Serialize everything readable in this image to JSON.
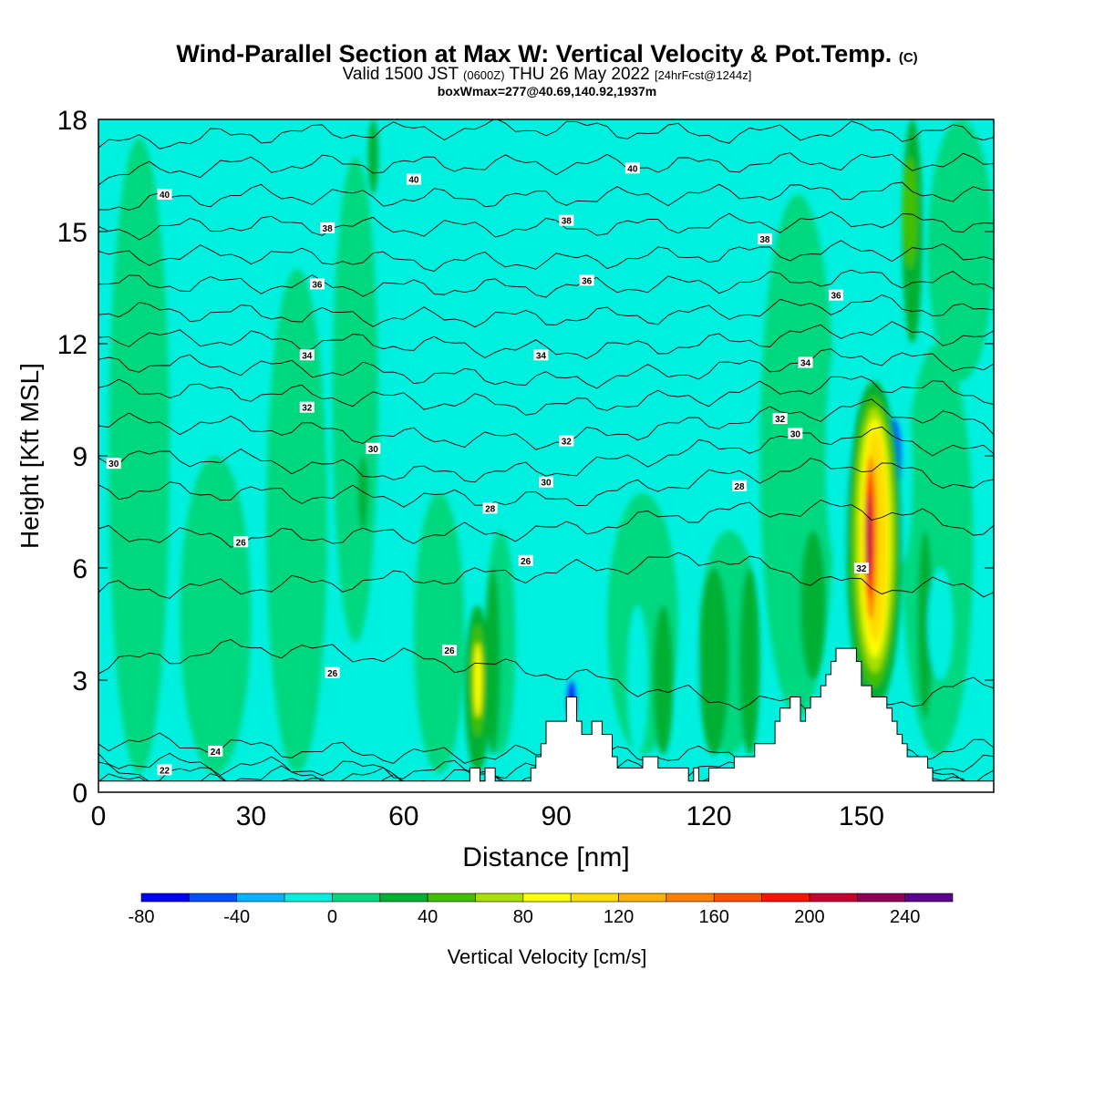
{
  "header": {
    "title_main": "Wind-Parallel Section at Max W: Vertical Velocity & Pot.Temp.",
    "title_mark": "(C)",
    "valid_a": "Valid 1500 JST",
    "valid_b": "(0600Z)",
    "valid_c": "THU 26 May 2022",
    "valid_d": "[24hrFcst@1244z]",
    "boxline": "boxWmax=277@40.69,140.92,1937m"
  },
  "colors": {
    "background_field": "#00f0e0",
    "green_light": "#00d880",
    "green_mid": "#00c040",
    "terrain": "#ffffff",
    "contour": "#000000"
  },
  "chart_data": {
    "type": "heatmap",
    "xlabel": "Distance [nm]",
    "ylabel": "Height [Kft MSL]",
    "xlim": [
      0,
      176
    ],
    "ylim": [
      0,
      18
    ],
    "xticks": [
      0,
      30,
      60,
      90,
      120,
      150
    ],
    "yticks": [
      0,
      3,
      6,
      9,
      12,
      15,
      18
    ],
    "colorbar": {
      "label": "Vertical Velocity [cm/s]",
      "bounds": [
        -80,
        -60,
        -40,
        -20,
        0,
        20,
        40,
        60,
        80,
        100,
        120,
        140,
        160,
        180,
        200,
        220,
        240,
        260
      ],
      "tick_labels": [
        "-80",
        "-40",
        "0",
        "40",
        "80",
        "120",
        "160",
        "200",
        "240"
      ],
      "tick_values": [
        -80,
        -40,
        0,
        40,
        80,
        120,
        160,
        200,
        240
      ],
      "colors": [
        "#0000ff",
        "#0050ff",
        "#00b4ff",
        "#00f0e0",
        "#00d880",
        "#00b030",
        "#40c000",
        "#a8e000",
        "#ffff00",
        "#ffdc00",
        "#ffb000",
        "#ff8000",
        "#ff5000",
        "#ff1000",
        "#c80030",
        "#900058",
        "#600090"
      ]
    },
    "terrain": [
      [
        0,
        0.3
      ],
      [
        73,
        0.3
      ],
      [
        73,
        0.65
      ],
      [
        75,
        0.65
      ],
      [
        75,
        0.3
      ],
      [
        76,
        0.3
      ],
      [
        76,
        0.65
      ],
      [
        78,
        0.65
      ],
      [
        78,
        0.3
      ],
      [
        85,
        0.3
      ],
      [
        85,
        0.65
      ],
      [
        86,
        0.65
      ],
      [
        86,
        0.95
      ],
      [
        87,
        0.95
      ],
      [
        87,
        1.3
      ],
      [
        88,
        1.3
      ],
      [
        88,
        1.9
      ],
      [
        92,
        1.9
      ],
      [
        92,
        2.55
      ],
      [
        94,
        2.55
      ],
      [
        94,
        1.9
      ],
      [
        95,
        1.9
      ],
      [
        95,
        1.55
      ],
      [
        97,
        1.55
      ],
      [
        97,
        1.9
      ],
      [
        99,
        1.9
      ],
      [
        99,
        1.55
      ],
      [
        101,
        1.55
      ],
      [
        101,
        0.95
      ],
      [
        102,
        0.95
      ],
      [
        102,
        0.65
      ],
      [
        107,
        0.65
      ],
      [
        107,
        0.95
      ],
      [
        110,
        0.95
      ],
      [
        110,
        0.65
      ],
      [
        116,
        0.65
      ],
      [
        116,
        0.3
      ],
      [
        117,
        0.3
      ],
      [
        117,
        0.65
      ],
      [
        118,
        0.65
      ],
      [
        118,
        0.3
      ],
      [
        120,
        0.3
      ],
      [
        120,
        0.65
      ],
      [
        125,
        0.65
      ],
      [
        125,
        0.95
      ],
      [
        129,
        0.95
      ],
      [
        129,
        1.3
      ],
      [
        133,
        1.3
      ],
      [
        133,
        1.9
      ],
      [
        134,
        1.9
      ],
      [
        134,
        2.25
      ],
      [
        136,
        2.25
      ],
      [
        136,
        2.55
      ],
      [
        138,
        2.55
      ],
      [
        138,
        1.9
      ],
      [
        139,
        1.9
      ],
      [
        139,
        2.25
      ],
      [
        140,
        2.25
      ],
      [
        140,
        2.55
      ],
      [
        142,
        2.55
      ],
      [
        142,
        2.85
      ],
      [
        143,
        2.85
      ],
      [
        143,
        3.15
      ],
      [
        144,
        3.15
      ],
      [
        144,
        3.5
      ],
      [
        145,
        3.5
      ],
      [
        145,
        3.85
      ],
      [
        149,
        3.85
      ],
      [
        149,
        3.5
      ],
      [
        150,
        3.5
      ],
      [
        150,
        2.85
      ],
      [
        152,
        2.85
      ],
      [
        152,
        2.55
      ],
      [
        155,
        2.55
      ],
      [
        155,
        2.25
      ],
      [
        156,
        2.25
      ],
      [
        156,
        1.9
      ],
      [
        157,
        1.9
      ],
      [
        157,
        1.55
      ],
      [
        158,
        1.55
      ],
      [
        158,
        1.3
      ],
      [
        159,
        1.3
      ],
      [
        159,
        0.95
      ],
      [
        163,
        0.95
      ],
      [
        163,
        0.65
      ],
      [
        164,
        0.65
      ],
      [
        164,
        0.3
      ],
      [
        176,
        0.3
      ]
    ],
    "velocity_regions": [
      {
        "x": [
          2,
          14
        ],
        "y": [
          0.5,
          17.5
        ],
        "value": 10
      },
      {
        "x": [
          16,
          30
        ],
        "y": [
          0.5,
          9
        ],
        "value": 10
      },
      {
        "x": [
          33,
          45
        ],
        "y": [
          0.5,
          14
        ],
        "value": 10
      },
      {
        "x": [
          46,
          55
        ],
        "y": [
          4,
          17
        ],
        "value": 10
      },
      {
        "x": [
          62,
          72
        ],
        "y": [
          0.5,
          8
        ],
        "value": 10
      },
      {
        "x": [
          76,
          82
        ],
        "y": [
          1,
          7
        ],
        "value": 10
      },
      {
        "x": [
          100,
          114
        ],
        "y": [
          1,
          8
        ],
        "value": 10
      },
      {
        "x": [
          118,
          130
        ],
        "y": [
          1,
          7
        ],
        "value": 10
      },
      {
        "x": [
          130,
          145
        ],
        "y": [
          2,
          16
        ],
        "value": 10
      },
      {
        "x": [
          158,
          172
        ],
        "y": [
          1,
          12
        ],
        "value": 10
      },
      {
        "x": [
          163,
          176
        ],
        "y": [
          11,
          18
        ],
        "value": 10
      },
      {
        "x": [
          118,
          124
        ],
        "y": [
          1,
          6
        ],
        "value": 30
      },
      {
        "x": [
          126,
          130
        ],
        "y": [
          1,
          6
        ],
        "value": 30
      },
      {
        "x": [
          138,
          143
        ],
        "y": [
          3,
          7
        ],
        "value": 30
      },
      {
        "x": [
          161,
          164
        ],
        "y": [
          2,
          7
        ],
        "value": 30
      },
      {
        "x": [
          109,
          113
        ],
        "y": [
          1,
          5
        ],
        "value": 30
      },
      {
        "x": [
          76,
          79
        ],
        "y": [
          1,
          6
        ],
        "value": 30
      },
      {
        "x": [
          51,
          53
        ],
        "y": [
          7,
          9
        ],
        "value": 30
      },
      {
        "x": [
          53,
          55
        ],
        "y": [
          16,
          18
        ],
        "value": 30
      },
      {
        "x": [
          158,
          162
        ],
        "y": [
          12,
          18
        ],
        "value": 30
      },
      {
        "x": [
          158,
          161
        ],
        "y": [
          14,
          17
        ],
        "value": 50
      },
      {
        "x": [
          88,
          98
        ],
        "y": [
          1.5,
          6.5
        ],
        "value": -10
      },
      {
        "x": [
          104,
          108
        ],
        "y": [
          1,
          5
        ],
        "value": -10
      },
      {
        "x": [
          114,
          118
        ],
        "y": [
          1,
          5
        ],
        "value": -10
      },
      {
        "x": [
          143,
          148
        ],
        "y": [
          6,
          12
        ],
        "value": -10
      },
      {
        "x": [
          155,
          160
        ],
        "y": [
          6,
          11
        ],
        "value": -10
      },
      {
        "x": [
          163,
          168
        ],
        "y": [
          3,
          6
        ],
        "value": -10
      },
      {
        "x": [
          92,
          94
        ],
        "y": [
          2,
          3
        ],
        "value": -70
      },
      {
        "x": [
          155,
          158
        ],
        "y": [
          8,
          10
        ],
        "value": -50
      },
      {
        "x": [
          72,
          77
        ],
        "y": [
          0.5,
          5
        ],
        "value": 30
      },
      {
        "x": [
          73,
          76
        ],
        "y": [
          1.5,
          4.5
        ],
        "value": 50
      },
      {
        "x": [
          73.8,
          75.4
        ],
        "y": [
          2,
          4
        ],
        "value": 90
      },
      {
        "x": [
          147,
          158
        ],
        "y": [
          2.2,
          11
        ],
        "value": 30
      },
      {
        "x": [
          148,
          157
        ],
        "y": [
          2.8,
          10.6
        ],
        "value": 50
      },
      {
        "x": [
          148.8,
          156.4
        ],
        "y": [
          3.2,
          10.3
        ],
        "value": 70
      },
      {
        "x": [
          149.6,
          155.6
        ],
        "y": [
          3.6,
          10
        ],
        "value": 90
      },
      {
        "x": [
          150.4,
          155
        ],
        "y": [
          4,
          9.7
        ],
        "value": 110
      },
      {
        "x": [
          150.6,
          153
        ],
        "y": [
          4.6,
          9
        ],
        "value": 150
      },
      {
        "x": [
          150.8,
          152.4
        ],
        "y": [
          5.2,
          8.5
        ],
        "value": 190
      },
      {
        "x": [
          151,
          151.8
        ],
        "y": [
          5.6,
          8
        ],
        "value": 230
      }
    ],
    "theta_levels": [
      22,
      23,
      24,
      25,
      26,
      27,
      28,
      29,
      30,
      31,
      32,
      33,
      34,
      35,
      36,
      37,
      38,
      39,
      40,
      41
    ],
    "theta_profiles": [
      {
        "x": 0,
        "heights": [
          0.28,
          0.55,
          0.85,
          1.4,
          3.4,
          5.4,
          6.9,
          8.1,
          9.0,
          9.9,
          10.8,
          11.5,
          12.2,
          12.9,
          13.6,
          14.3,
          15.0,
          15.7,
          16.5,
          17.3
        ]
      },
      {
        "x": 30,
        "heights": [
          0.22,
          0.45,
          0.7,
          1.2,
          3.9,
          5.5,
          6.8,
          8.0,
          8.9,
          9.8,
          10.7,
          11.4,
          12.1,
          12.8,
          13.6,
          14.4,
          15.2,
          16.0,
          16.8,
          17.6
        ]
      },
      {
        "x": 60,
        "heights": [
          0.2,
          0.4,
          0.6,
          1.0,
          3.6,
          5.7,
          6.9,
          7.9,
          8.5,
          9.5,
          10.5,
          11.2,
          12.0,
          12.7,
          13.5,
          14.2,
          15.1,
          15.9,
          16.8,
          17.7
        ]
      },
      {
        "x": 90,
        "heights": [
          0.2,
          0.4,
          0.6,
          1.0,
          3.2,
          5.9,
          7.0,
          7.8,
          8.6,
          9.4,
          10.3,
          11.0,
          11.8,
          12.7,
          13.5,
          14.2,
          15.1,
          15.9,
          16.8,
          17.8
        ]
      },
      {
        "x": 120,
        "heights": [
          0.2,
          0.4,
          0.6,
          1.0,
          2.5,
          6.3,
          7.5,
          8.4,
          9.2,
          9.9,
          10.6,
          11.3,
          12.0,
          12.8,
          13.6,
          14.4,
          15.2,
          16.0,
          16.8,
          17.6
        ]
      },
      {
        "x": 150,
        "heights": [
          0.2,
          0.4,
          0.6,
          1.0,
          2.2,
          5.5,
          7.6,
          8.8,
          9.6,
          10.3,
          11.0,
          11.7,
          12.4,
          13.1,
          13.8,
          14.5,
          15.3,
          16.1,
          16.9,
          17.7
        ]
      },
      {
        "x": 176,
        "heights": [
          0.25,
          0.5,
          0.8,
          1.2,
          3.0,
          5.5,
          7.0,
          8.1,
          9.0,
          9.8,
          10.6,
          11.4,
          12.1,
          12.8,
          13.6,
          14.4,
          15.2,
          16.0,
          16.8,
          17.6
        ]
      }
    ],
    "contour_labels": [
      {
        "text": "40",
        "x": 13,
        "y": 16.0
      },
      {
        "text": "40",
        "x": 62,
        "y": 16.4
      },
      {
        "text": "40",
        "x": 105,
        "y": 16.7
      },
      {
        "text": "38",
        "x": 45,
        "y": 15.1
      },
      {
        "text": "38",
        "x": 92,
        "y": 15.3
      },
      {
        "text": "38",
        "x": 131,
        "y": 14.8
      },
      {
        "text": "36",
        "x": 43,
        "y": 13.6
      },
      {
        "text": "36",
        "x": 96,
        "y": 13.7
      },
      {
        "text": "36",
        "x": 145,
        "y": 13.3
      },
      {
        "text": "34",
        "x": 41,
        "y": 11.7
      },
      {
        "text": "34",
        "x": 87,
        "y": 11.7
      },
      {
        "text": "34",
        "x": 139,
        "y": 11.5
      },
      {
        "text": "32",
        "x": 41,
        "y": 10.3
      },
      {
        "text": "32",
        "x": 92,
        "y": 9.4
      },
      {
        "text": "32",
        "x": 134,
        "y": 10.0
      },
      {
        "text": "32",
        "x": 150,
        "y": 6.0
      },
      {
        "text": "30",
        "x": 3,
        "y": 8.8
      },
      {
        "text": "30",
        "x": 54,
        "y": 9.2
      },
      {
        "text": "30",
        "x": 88,
        "y": 8.3
      },
      {
        "text": "30",
        "x": 137,
        "y": 9.6
      },
      {
        "text": "28",
        "x": 77,
        "y": 7.6
      },
      {
        "text": "28",
        "x": 126,
        "y": 8.2
      },
      {
        "text": "26",
        "x": 28,
        "y": 6.7
      },
      {
        "text": "26",
        "x": 84,
        "y": 6.2
      },
      {
        "text": "26",
        "x": 46,
        "y": 3.2
      },
      {
        "text": "26",
        "x": 69,
        "y": 3.8
      },
      {
        "text": "24",
        "x": 23,
        "y": 1.1
      },
      {
        "text": "22",
        "x": 13,
        "y": 0.6
      }
    ]
  }
}
